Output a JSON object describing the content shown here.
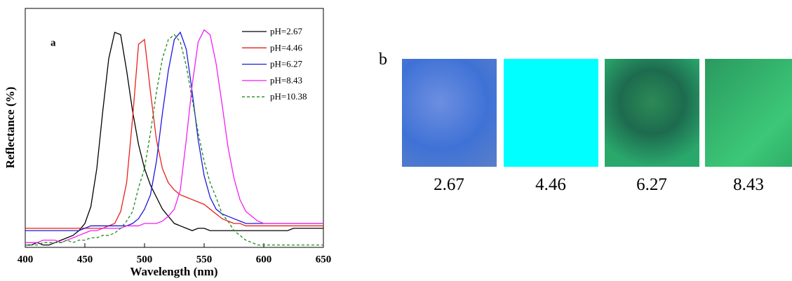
{
  "chart_data": {
    "type": "line",
    "annotation": "a",
    "xlabel": "Wavelength (nm)",
    "ylabel": "Reflectance (%)",
    "xlim": [
      400,
      650
    ],
    "xticks": [
      400,
      450,
      500,
      550,
      600,
      650
    ],
    "ylim": [
      0,
      1
    ],
    "legend": "upper right",
    "x": [
      400,
      405,
      410,
      415,
      420,
      425,
      430,
      435,
      440,
      445,
      450,
      455,
      460,
      465,
      470,
      475,
      480,
      485,
      490,
      495,
      500,
      505,
      510,
      515,
      520,
      525,
      530,
      535,
      540,
      545,
      550,
      555,
      560,
      565,
      570,
      575,
      580,
      585,
      590,
      595,
      600,
      605,
      610,
      615,
      620,
      625,
      630,
      635,
      640,
      645,
      650
    ],
    "series": [
      {
        "name": "pH=2.67",
        "color": "#000000",
        "dash": false,
        "values": [
          0.01,
          0.01,
          0.02,
          0.01,
          0.01,
          0.02,
          0.03,
          0.04,
          0.05,
          0.07,
          0.1,
          0.17,
          0.33,
          0.57,
          0.79,
          0.9,
          0.89,
          0.74,
          0.57,
          0.43,
          0.33,
          0.26,
          0.21,
          0.16,
          0.13,
          0.1,
          0.09,
          0.08,
          0.07,
          0.08,
          0.08,
          0.07,
          0.07,
          0.07,
          0.07,
          0.07,
          0.07,
          0.07,
          0.07,
          0.07,
          0.07,
          0.07,
          0.07,
          0.07,
          0.07,
          0.08,
          0.08,
          0.08,
          0.08,
          0.08,
          0.08
        ]
      },
      {
        "name": "pH=4.46",
        "color": "#e8211b",
        "dash": false,
        "values": [
          0.08,
          0.08,
          0.08,
          0.08,
          0.08,
          0.08,
          0.08,
          0.08,
          0.08,
          0.08,
          0.08,
          0.08,
          0.08,
          0.08,
          0.09,
          0.1,
          0.15,
          0.27,
          0.54,
          0.85,
          0.87,
          0.65,
          0.45,
          0.33,
          0.27,
          0.24,
          0.22,
          0.21,
          0.2,
          0.19,
          0.18,
          0.16,
          0.14,
          0.12,
          0.11,
          0.1,
          0.1,
          0.09,
          0.09,
          0.09,
          0.09,
          0.09,
          0.09,
          0.09,
          0.09,
          0.09,
          0.09,
          0.09,
          0.09,
          0.09,
          0.09
        ]
      },
      {
        "name": "pH=6.27",
        "color": "#1a1adb",
        "dash": false,
        "values": [
          0.07,
          0.07,
          0.07,
          0.07,
          0.07,
          0.07,
          0.07,
          0.07,
          0.07,
          0.07,
          0.08,
          0.09,
          0.09,
          0.09,
          0.09,
          0.09,
          0.09,
          0.09,
          0.1,
          0.12,
          0.16,
          0.22,
          0.36,
          0.56,
          0.74,
          0.87,
          0.9,
          0.83,
          0.65,
          0.45,
          0.3,
          0.21,
          0.16,
          0.14,
          0.13,
          0.12,
          0.11,
          0.1,
          0.1,
          0.1,
          0.1,
          0.1,
          0.1,
          0.1,
          0.1,
          0.1,
          0.1,
          0.1,
          0.1,
          0.1,
          0.1
        ]
      },
      {
        "name": "pH=8.43",
        "color": "#f21ff2",
        "dash": false,
        "values": [
          0.02,
          0.02,
          0.02,
          0.03,
          0.03,
          0.03,
          0.02,
          0.03,
          0.04,
          0.05,
          0.06,
          0.07,
          0.07,
          0.08,
          0.08,
          0.08,
          0.08,
          0.09,
          0.09,
          0.09,
          0.1,
          0.1,
          0.1,
          0.11,
          0.13,
          0.16,
          0.24,
          0.45,
          0.68,
          0.86,
          0.91,
          0.89,
          0.77,
          0.6,
          0.42,
          0.29,
          0.2,
          0.15,
          0.13,
          0.11,
          0.1,
          0.1,
          0.1,
          0.1,
          0.1,
          0.1,
          0.1,
          0.1,
          0.1,
          0.1,
          0.1
        ]
      },
      {
        "name": "pH=10.38",
        "color": "#1e8a1e",
        "dash": true,
        "values": [
          0.01,
          0.01,
          0.01,
          0.02,
          0.02,
          0.02,
          0.02,
          0.03,
          0.02,
          0.03,
          0.03,
          0.04,
          0.04,
          0.05,
          0.05,
          0.06,
          0.08,
          0.11,
          0.15,
          0.25,
          0.33,
          0.48,
          0.65,
          0.79,
          0.87,
          0.89,
          0.86,
          0.76,
          0.62,
          0.48,
          0.36,
          0.27,
          0.21,
          0.14,
          0.11,
          0.07,
          0.05,
          0.03,
          0.02,
          0.01,
          0.01,
          0.01,
          0.01,
          0.01,
          0.01,
          0.01,
          0.01,
          0.01,
          0.01,
          0.01,
          0.01
        ]
      }
    ]
  },
  "panel_b": {
    "label": "b",
    "captions": [
      "2.67",
      "4.46",
      "6.27",
      "8.43"
    ]
  }
}
